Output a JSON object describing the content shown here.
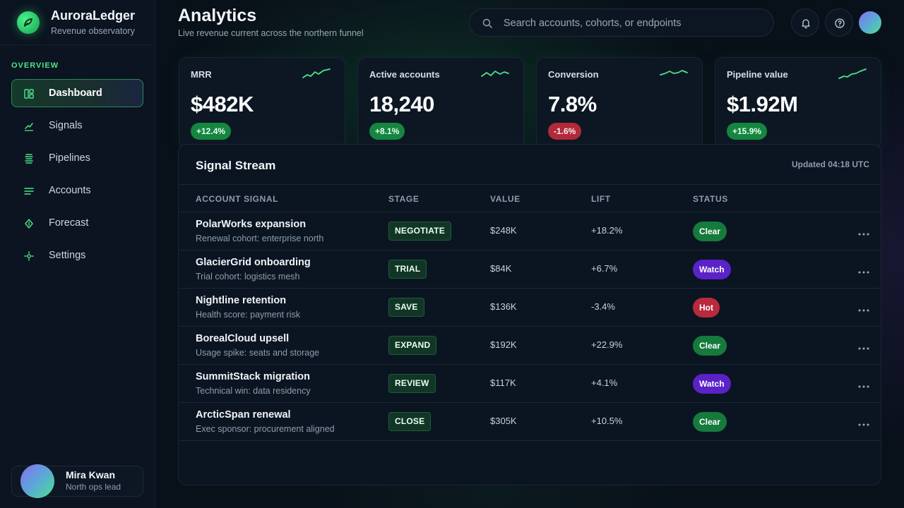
{
  "brand": {
    "name": "AuroraLedger",
    "subtitle": "Revenue observatory"
  },
  "sidebar": {
    "section": "OVERVIEW",
    "items": [
      {
        "label": "Dashboard",
        "icon": "dashboard-icon",
        "active": true
      },
      {
        "label": "Signals",
        "icon": "trend-icon"
      },
      {
        "label": "Pipelines",
        "icon": "pipelines-icon"
      },
      {
        "label": "Accounts",
        "icon": "list-icon"
      },
      {
        "label": "Forecast",
        "icon": "forecast-icon"
      },
      {
        "label": "Settings",
        "icon": "gear-icon"
      }
    ],
    "user": {
      "name": "Mira Kwan",
      "role": "North ops lead"
    }
  },
  "header": {
    "title": "Analytics",
    "subtitle": "Live revenue current across the northern funnel",
    "search_placeholder": "Search accounts, cohorts, or endpoints"
  },
  "kpis": [
    {
      "label": "MRR",
      "value": "$482K",
      "delta": "+12.4%",
      "trend": "up"
    },
    {
      "label": "Active accounts",
      "value": "18,240",
      "delta": "+8.1%",
      "trend": "up"
    },
    {
      "label": "Conversion",
      "value": "7.8%",
      "delta": "-1.6%",
      "trend": "down"
    },
    {
      "label": "Pipeline value",
      "value": "$1.92M",
      "delta": "+15.9%",
      "trend": "up"
    }
  ],
  "stream": {
    "title": "Signal Stream",
    "updated": "Updated 04:18 UTC",
    "columns": [
      "ACCOUNT SIGNAL",
      "STAGE",
      "VALUE",
      "LIFT",
      "STATUS"
    ],
    "rows": [
      {
        "title": "PolarWorks expansion",
        "sub": "Renewal cohort: enterprise north",
        "stage": "NEGOTIATE",
        "value": "$248K",
        "lift": "+18.2%",
        "status": "Clear"
      },
      {
        "title": "GlacierGrid onboarding",
        "sub": "Trial cohort: logistics mesh",
        "stage": "TRIAL",
        "value": "$84K",
        "lift": "+6.7%",
        "status": "Watch"
      },
      {
        "title": "Nightline retention",
        "sub": "Health score: payment risk",
        "stage": "SAVE",
        "value": "$136K",
        "lift": "-3.4%",
        "status": "Hot"
      },
      {
        "title": "BorealCloud upsell",
        "sub": "Usage spike: seats and storage",
        "stage": "EXPAND",
        "value": "$192K",
        "lift": "+22.9%",
        "status": "Clear"
      },
      {
        "title": "SummitStack migration",
        "sub": "Technical win: data residency",
        "stage": "REVIEW",
        "value": "$117K",
        "lift": "+4.1%",
        "status": "Watch"
      },
      {
        "title": "ArcticSpan renewal",
        "sub": "Exec sponsor: procurement aligned",
        "stage": "CLOSE",
        "value": "$305K",
        "lift": "+10.5%",
        "status": "Clear"
      }
    ]
  },
  "colors": {
    "accent": "#4ee38a",
    "clear": "#157a3c",
    "watch": "#5a22c8",
    "hot": "#b82a3c"
  }
}
